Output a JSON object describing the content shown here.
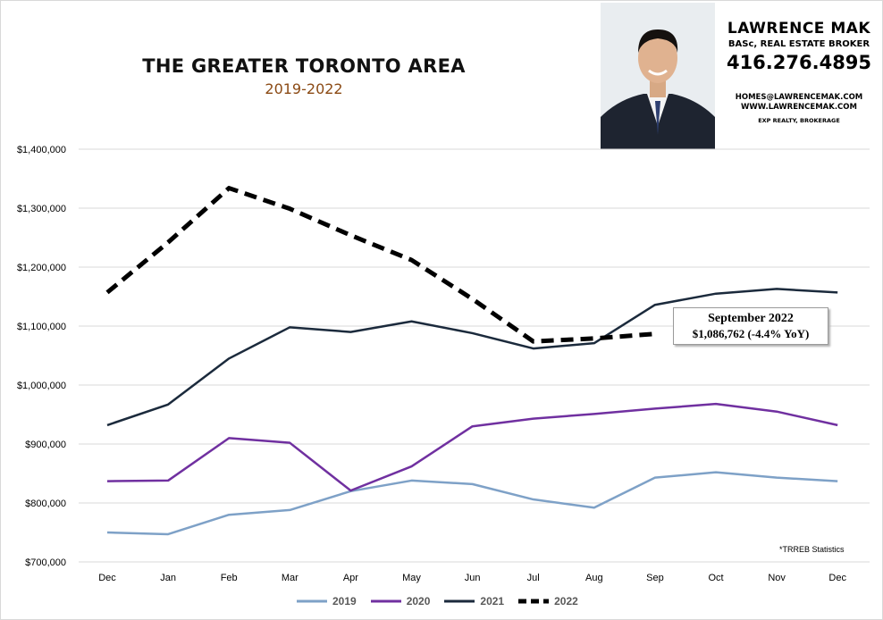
{
  "header": {
    "title": "THE GREATER TORONTO AREA",
    "subtitle": "2019-2022"
  },
  "contact": {
    "name": "LAWRENCE MAK",
    "title": "BASc, REAL ESTATE BROKER",
    "phone": "416.276.4895",
    "email": "HOMES@LAWRENCEMAK.COM",
    "website": "WWW.LAWRENCEMAK.COM",
    "company": "EXP REALTY, BROKERAGE"
  },
  "callout": {
    "line1": "September 2022",
    "line2": "$1,086,762  (-4.4%  YoY)"
  },
  "source_note": "*TRREB Statistics",
  "colors": {
    "2019": "#7ea1c7",
    "2020": "#7030a0",
    "2021": "#1b2a3c",
    "2022": "#000000",
    "grid": "#d9d9d9",
    "axis_text": "#000000"
  },
  "chart_data": {
    "type": "line",
    "title": "THE GREATER TORONTO AREA",
    "subtitle": "2019-2022",
    "xlabel": "",
    "ylabel": "",
    "categories": [
      "Dec",
      "Jan",
      "Feb",
      "Mar",
      "Apr",
      "May",
      "Jun",
      "Jul",
      "Aug",
      "Sep",
      "Oct",
      "Nov",
      "Dec"
    ],
    "ylim": [
      700000,
      1400000
    ],
    "yticks": [
      700000,
      800000,
      900000,
      1000000,
      1100000,
      1200000,
      1300000,
      1400000
    ],
    "ytick_labels": [
      "$700,000",
      "$800,000",
      "$900,000",
      "$1,000,000",
      "$1,100,000",
      "$1,200,000",
      "$1,300,000",
      "$1,400,000"
    ],
    "grid": true,
    "legend": "bottom",
    "series": [
      {
        "name": "2019",
        "style": "solid",
        "values": [
          750000,
          747000,
          780000,
          788000,
          820000,
          838000,
          832000,
          806000,
          792000,
          843000,
          852000,
          843000,
          837000
        ]
      },
      {
        "name": "2020",
        "style": "solid",
        "values": [
          837000,
          838000,
          910000,
          902000,
          821000,
          862000,
          930000,
          943000,
          951000,
          960000,
          968000,
          955000,
          932000
        ]
      },
      {
        "name": "2021",
        "style": "solid",
        "values": [
          932000,
          967000,
          1045000,
          1098000,
          1090000,
          1108000,
          1088000,
          1062000,
          1071000,
          1136000,
          1155000,
          1163000,
          1157000
        ]
      },
      {
        "name": "2022",
        "style": "dashed",
        "values": [
          1157000,
          1242000,
          1334000,
          1299000,
          1254000,
          1212000,
          1146000,
          1074000,
          1079000,
          1086762,
          null,
          null,
          null
        ]
      }
    ]
  }
}
